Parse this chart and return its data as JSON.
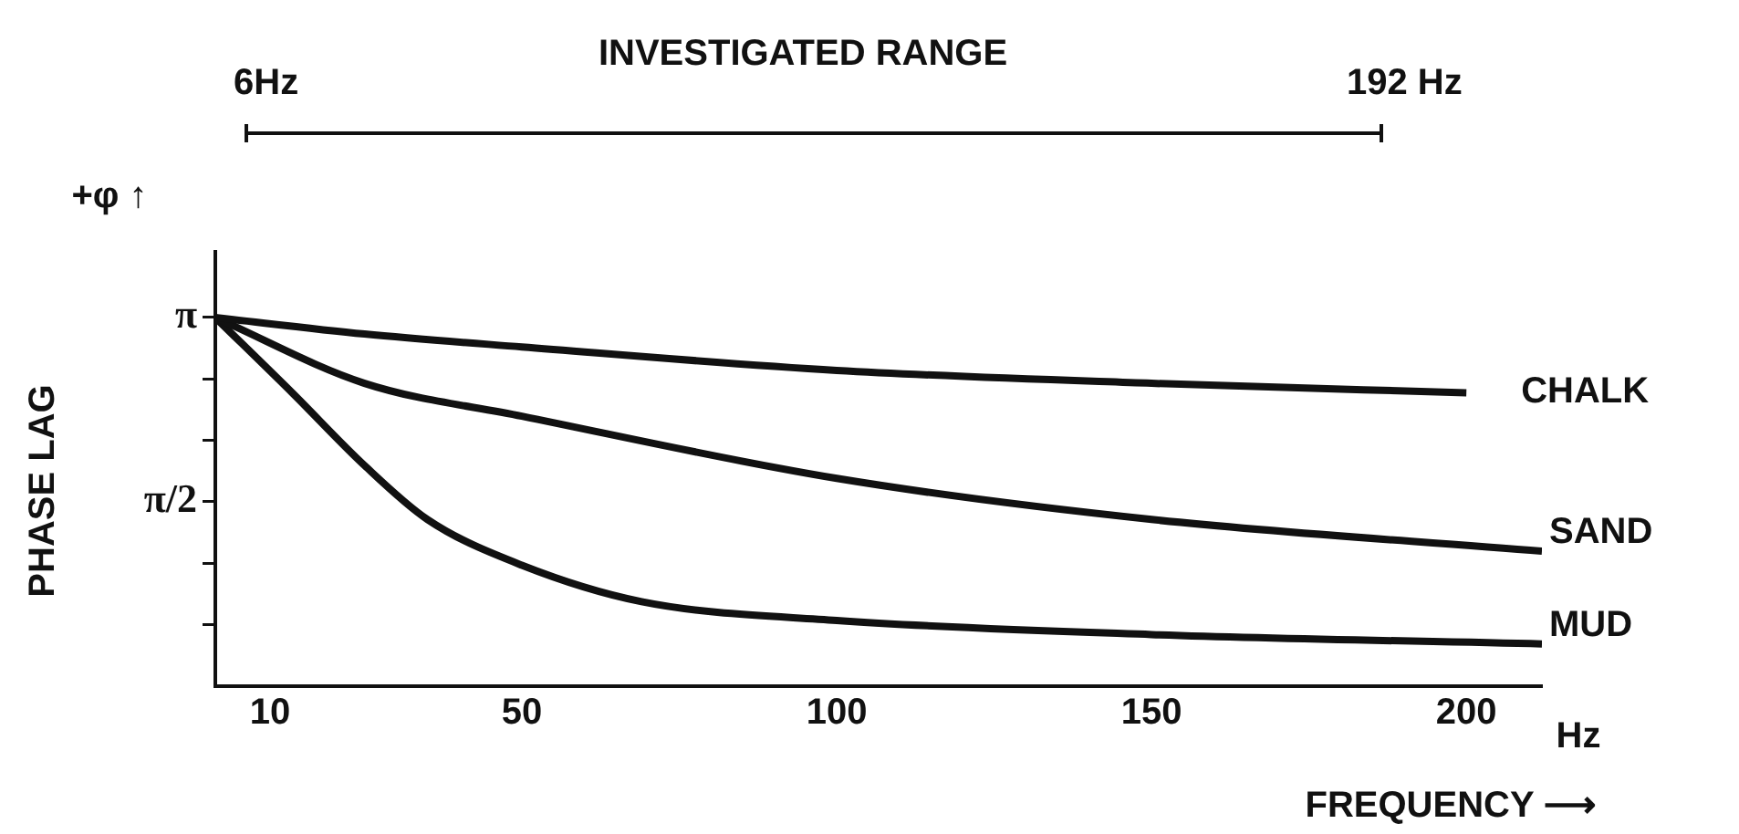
{
  "chart_data": {
    "type": "line",
    "xlabel": "FREQUENCY ⟶",
    "ylabel": "PHASE LAG",
    "annotations": [
      "INVESTIGATED RANGE",
      "6Hz",
      "192 Hz",
      "+φ ↑",
      "Hz"
    ],
    "series": [
      {
        "name": "CHALK",
        "color": "#111111",
        "x": [
          1.3,
          25,
          50,
          100,
          150,
          200
        ],
        "values": [
          3.14,
          3.0,
          2.89,
          2.69,
          2.58,
          2.5
        ]
      },
      {
        "name": "SAND",
        "color": "#111111",
        "x": [
          1.3,
          25,
          50,
          100,
          150,
          212
        ],
        "values": [
          3.14,
          2.58,
          2.3,
          1.77,
          1.42,
          1.15
        ]
      },
      {
        "name": "MUD",
        "color": "#111111",
        "x": [
          1.3,
          13.5,
          25,
          35,
          50,
          69,
          100,
          150,
          212
        ],
        "values": [
          3.14,
          2.5,
          1.88,
          1.42,
          1.03,
          0.72,
          0.56,
          0.44,
          0.36
        ]
      }
    ],
    "xlim": [
      1.3,
      212
    ],
    "xticks": [
      10,
      50,
      100,
      150,
      200
    ],
    "ylim": [
      0,
      3.7
    ],
    "yticks": [
      {
        "value": 0.5236,
        "label": null
      },
      {
        "value": 1.0472,
        "label": null
      },
      {
        "value": 1.5708,
        "label": "π/2"
      },
      {
        "value": 2.0944,
        "label": null
      },
      {
        "value": 2.618,
        "label": null
      },
      {
        "value": 3.1416,
        "label": "π"
      }
    ],
    "grid": false,
    "legend": false,
    "marker": "none",
    "line_style": "solid"
  }
}
